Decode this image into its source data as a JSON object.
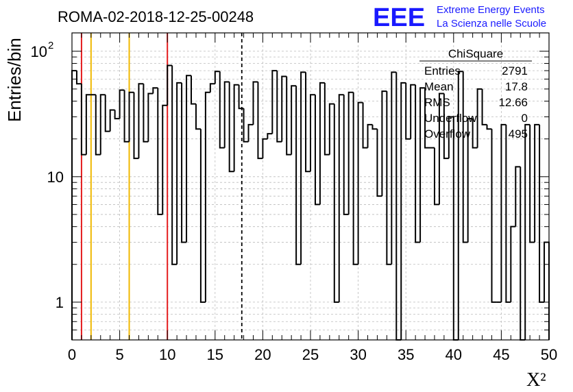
{
  "header": {
    "run_title": "ROMA-02-2018-12-25-00248",
    "logo_text": "EEE",
    "org_line1": "Extreme Energy Events",
    "org_line2": "La Scienza nelle Scuole"
  },
  "stats_box": {
    "title": "ChiSquare",
    "rows": [
      {
        "label": "Entries",
        "value": "2791"
      },
      {
        "label": "Mean",
        "value": "17.8"
      },
      {
        "label": "RMS",
        "value": "12.66"
      },
      {
        "label": "Underflow",
        "value": "0"
      },
      {
        "label": "Overflow",
        "value": "495"
      }
    ]
  },
  "colors": {
    "red_line": "#e41a1c",
    "yellow_line": "#f0b800",
    "logo_blue": "#1a1aff",
    "histogram": "#000000"
  },
  "chart_data": {
    "type": "histogram",
    "xlabel": "X²",
    "ylabel": "Entries/bin",
    "xlim": [
      0,
      50
    ],
    "ylim": [
      0.5,
      140
    ],
    "y_scale": "log",
    "grid": true,
    "x_ticks": [
      "0",
      "5",
      "10",
      "15",
      "20",
      "25",
      "30",
      "35",
      "40",
      "45",
      "50"
    ],
    "y_ticks": [
      {
        "value": 1,
        "label": "1"
      },
      {
        "value": 10,
        "label": "10"
      },
      {
        "value": 100,
        "label": "10",
        "exponent": "2"
      }
    ],
    "bin_width": 0.5,
    "bin_start": 0,
    "counts": [
      70,
      55,
      15,
      45,
      45,
      15,
      45,
      23,
      34,
      29,
      49,
      19,
      47,
      14,
      55,
      19,
      46,
      51,
      5,
      37,
      77,
      2,
      56,
      3,
      64,
      38,
      24,
      1,
      47,
      55,
      69,
      17,
      57,
      11,
      54,
      35,
      19,
      26,
      57,
      14,
      20,
      22,
      70,
      19,
      63,
      15,
      53,
      2,
      68,
      11,
      45,
      6,
      56,
      15,
      38,
      1,
      45,
      5,
      47,
      2,
      39,
      17,
      26,
      24,
      7,
      48,
      2,
      68,
      0,
      56,
      20,
      54,
      3,
      51,
      17,
      17,
      6,
      46,
      14,
      30,
      0,
      69,
      3,
      29,
      17,
      50,
      26,
      24,
      1,
      1,
      26,
      1,
      4,
      12,
      0,
      26,
      3,
      26,
      1,
      3
    ],
    "vertical_lines": [
      {
        "x": 1,
        "color": "red"
      },
      {
        "x": 2,
        "color": "yellow"
      },
      {
        "x": 6,
        "color": "yellow"
      },
      {
        "x": 10,
        "color": "red"
      },
      {
        "x": 17.8,
        "color": "black",
        "style": "dashed"
      }
    ]
  }
}
